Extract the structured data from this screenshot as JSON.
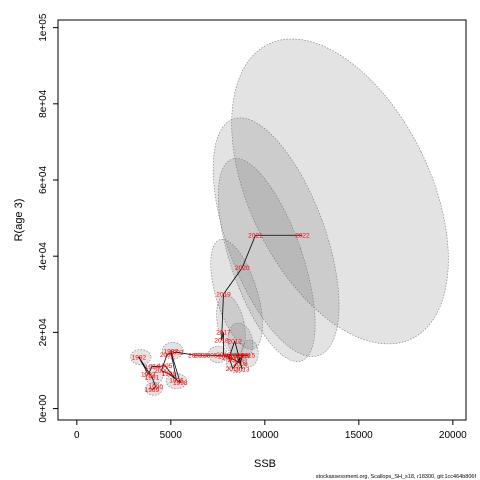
{
  "chart_data": {
    "type": "scatter",
    "title": "",
    "xlabel": "SSB",
    "ylabel": "R(age 3)",
    "xlim": [
      -1000,
      20700
    ],
    "ylim": [
      -3000,
      102000
    ],
    "x_ticks": [
      "0",
      "5000",
      "10000",
      "15000",
      "20000"
    ],
    "x_tick_values": [
      0,
      5000,
      10000,
      15000,
      20000
    ],
    "y_ticks": [
      "0e+00",
      "2e+04",
      "4e+04",
      "6e+04",
      "8e+04",
      "1e+05"
    ],
    "y_tick_values": [
      0,
      20000,
      40000,
      60000,
      80000,
      100000
    ],
    "grid": false,
    "legend": "none",
    "line_color": "#000000",
    "label_color": "#ff0000",
    "ellipse_fill": "rgba(100,100,100,0.18)",
    "ellipse_stroke": "#777777",
    "series": [
      {
        "points": [
          {
            "year": "1989",
            "x": 4000,
            "y": 5000
          },
          {
            "year": "1990",
            "x": 4200,
            "y": 5700
          },
          {
            "year": "1991",
            "x": 4000,
            "y": 8200
          },
          {
            "year": "1992",
            "x": 3300,
            "y": 13500
          },
          {
            "year": "1993",
            "x": 3800,
            "y": 9000
          },
          {
            "year": "1994",
            "x": 4000,
            "y": 11000
          },
          {
            "year": "1995",
            "x": 4700,
            "y": 11200
          },
          {
            "year": "1996",
            "x": 5300,
            "y": 7500
          },
          {
            "year": "1997",
            "x": 5000,
            "y": 15000
          },
          {
            "year": "1998",
            "x": 5500,
            "y": 6800
          },
          {
            "year": "1999",
            "x": 4900,
            "y": 9100
          },
          {
            "year": "2000",
            "x": 4500,
            "y": 10000
          },
          {
            "year": "2001",
            "x": 4800,
            "y": 14200
          },
          {
            "year": "2002",
            "x": 5300,
            "y": 14800
          },
          {
            "year": "2003",
            "x": 6300,
            "y": 14000
          },
          {
            "year": "2004",
            "x": 6600,
            "y": 14000
          },
          {
            "year": "2005",
            "x": 7100,
            "y": 14000
          },
          {
            "year": "2006",
            "x": 7900,
            "y": 13800
          },
          {
            "year": "2007",
            "x": 8400,
            "y": 12800
          },
          {
            "year": "2008",
            "x": 8700,
            "y": 11800
          },
          {
            "year": "2009",
            "x": 8800,
            "y": 13900
          },
          {
            "year": "2010",
            "x": 8300,
            "y": 10500
          },
          {
            "year": "2011",
            "x": 8100,
            "y": 13400
          },
          {
            "year": "2012",
            "x": 8400,
            "y": 17700
          },
          {
            "year": "2013",
            "x": 8800,
            "y": 10400
          },
          {
            "year": "2014",
            "x": 8500,
            "y": 14000
          },
          {
            "year": "2015",
            "x": 9100,
            "y": 14000
          },
          {
            "year": "2016",
            "x": 7800,
            "y": 14100
          },
          {
            "year": "2017",
            "x": 7800,
            "y": 20000
          },
          {
            "year": "2018",
            "x": 7700,
            "y": 18000
          },
          {
            "year": "2019",
            "x": 7800,
            "y": 30000
          },
          {
            "year": "2020",
            "x": 8800,
            "y": 37000
          },
          {
            "year": "2021",
            "x": 9500,
            "y": 45500
          },
          {
            "year": "2022",
            "x": 12000,
            "y": 45500
          }
        ]
      }
    ],
    "ellipses": [
      {
        "cx": 14000,
        "cy": 57000,
        "rx": 4800,
        "ry": 43000,
        "angle_deg": -26
      },
      {
        "cx": 10600,
        "cy": 45000,
        "rx": 2600,
        "ry": 33000,
        "angle_deg": -20
      },
      {
        "cx": 10100,
        "cy": 39000,
        "rx": 1900,
        "ry": 28000,
        "angle_deg": -19
      },
      {
        "cx": 8500,
        "cy": 30000,
        "rx": 1100,
        "ry": 15000,
        "angle_deg": -17
      },
      {
        "cx": 8200,
        "cy": 22000,
        "rx": 700,
        "ry": 8000,
        "angle_deg": -12
      },
      {
        "cx": 8700,
        "cy": 17500,
        "rx": 650,
        "ry": 5000,
        "angle_deg": -10
      },
      {
        "cx": 9200,
        "cy": 14500,
        "rx": 450,
        "ry": 3500,
        "angle_deg": 0
      },
      {
        "cx": 8500,
        "cy": 12000,
        "rx": 550,
        "ry": 2600,
        "angle_deg": 0
      },
      {
        "cx": 7500,
        "cy": 14200,
        "rx": 500,
        "ry": 2200,
        "angle_deg": 0
      },
      {
        "cx": 5100,
        "cy": 15200,
        "rx": 550,
        "ry": 2200,
        "angle_deg": 0
      },
      {
        "cx": 3400,
        "cy": 13500,
        "rx": 550,
        "ry": 2000,
        "angle_deg": 0
      },
      {
        "cx": 4100,
        "cy": 9000,
        "rx": 500,
        "ry": 2600,
        "angle_deg": 0
      },
      {
        "cx": 5300,
        "cy": 7200,
        "rx": 550,
        "ry": 2000,
        "angle_deg": 0
      },
      {
        "cx": 4100,
        "cy": 5200,
        "rx": 450,
        "ry": 1700,
        "angle_deg": 0
      }
    ]
  },
  "credit": "stockassessment.org, Scallops_SH_s18, r18300, git:1cc464b806f"
}
